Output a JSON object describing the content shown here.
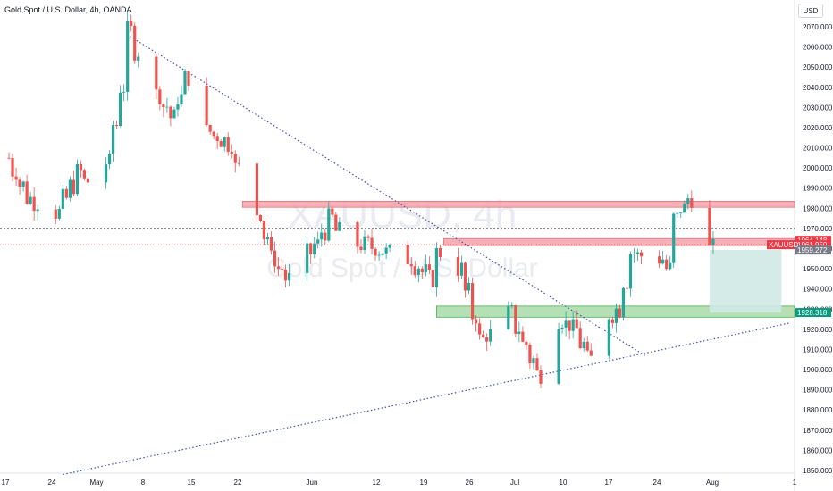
{
  "header": {
    "title": "Gold Spot / U.S. Dollar, 4h, OANDA",
    "currency": "USD"
  },
  "watermark": {
    "symbol": "XAUUSD, 4h",
    "subtitle": "Gold Spot / U.S. Dollar"
  },
  "colors": {
    "up": "#26a69a",
    "down": "#ef5350",
    "resistance_zone": "#f4a1a9",
    "support_zone": "#a8dba8",
    "target_box": "#cfe9e6",
    "trendline": "#3f51b5",
    "badge_red": "#f23645",
    "badge_green": "#089981",
    "badge_grey": "#787b86"
  },
  "chart_data": {
    "type": "candlestick",
    "symbol": "XAUUSD",
    "timeframe": "4h",
    "source": "OANDA",
    "x_ticks": [
      "17",
      "24",
      "May",
      "8",
      "15",
      "22",
      "Jun",
      "12",
      "19",
      "26",
      "Jul",
      "10",
      "17",
      "24",
      "Aug",
      "1"
    ],
    "y_ticks": [
      1850,
      1860,
      1870,
      1880,
      1890,
      1900,
      1910,
      1920,
      1930,
      1940,
      1950,
      1960,
      1970,
      1980,
      1990,
      2000,
      2010,
      2020,
      2030,
      2040,
      2050,
      2060,
      2070
    ],
    "ylim": [
      1848,
      2072
    ],
    "price_path": [
      {
        "date": "2023-04-17",
        "price": 2005
      },
      {
        "date": "2023-04-20",
        "price": 1985
      },
      {
        "date": "2023-04-24",
        "price": 1978
      },
      {
        "date": "2023-04-27",
        "price": 1998
      },
      {
        "date": "2023-04-30",
        "price": 1984
      },
      {
        "date": "2023-05-03",
        "price": 2040
      },
      {
        "date": "2023-05-04",
        "price": 2068
      },
      {
        "date": "2023-05-06",
        "price": 2048
      },
      {
        "date": "2023-05-10",
        "price": 2025
      },
      {
        "date": "2023-05-12",
        "price": 2045
      },
      {
        "date": "2023-05-15",
        "price": 2018
      },
      {
        "date": "2023-05-18",
        "price": 2012
      },
      {
        "date": "2023-05-20",
        "price": 1988
      },
      {
        "date": "2023-05-22",
        "price": 1978
      },
      {
        "date": "2023-05-24",
        "price": 1955
      },
      {
        "date": "2023-05-26",
        "price": 1945
      },
      {
        "date": "2023-05-30",
        "price": 1962
      },
      {
        "date": "2023-06-01",
        "price": 1975
      },
      {
        "date": "2023-06-03",
        "price": 1962
      },
      {
        "date": "2023-06-06",
        "price": 1962
      },
      {
        "date": "2023-06-09",
        "price": 1958
      },
      {
        "date": "2023-06-12",
        "price": 1955
      },
      {
        "date": "2023-06-15",
        "price": 1945
      },
      {
        "date": "2023-06-16",
        "price": 1958
      },
      {
        "date": "2023-06-19",
        "price": 1950
      },
      {
        "date": "2023-06-22",
        "price": 1915
      },
      {
        "date": "2023-06-24",
        "price": 1920
      },
      {
        "date": "2023-06-26",
        "price": 1928
      },
      {
        "date": "2023-06-29",
        "price": 1905
      },
      {
        "date": "2023-06-30",
        "price": 1898
      },
      {
        "date": "2023-07-03",
        "price": 1925
      },
      {
        "date": "2023-07-05",
        "price": 1920
      },
      {
        "date": "2023-07-07",
        "price": 1905
      },
      {
        "date": "2023-07-09",
        "price": 1925
      },
      {
        "date": "2023-07-11",
        "price": 1930
      },
      {
        "date": "2023-07-13",
        "price": 1958
      },
      {
        "date": "2023-07-15",
        "price": 1955
      },
      {
        "date": "2023-07-17",
        "price": 1955
      },
      {
        "date": "2023-07-18",
        "price": 1950
      },
      {
        "date": "2023-07-19",
        "price": 1975
      },
      {
        "date": "2023-07-20",
        "price": 1980
      },
      {
        "date": "2023-07-21",
        "price": 1985
      },
      {
        "date": "2023-07-22",
        "price": 1965
      },
      {
        "date": "2023-07-24",
        "price": 1960
      }
    ],
    "zones": [
      {
        "name": "resistance-zone-upper",
        "start": "2023-05-20",
        "end": "2023-08-03",
        "low": 1980.5,
        "high": 1983.5
      },
      {
        "name": "resistance-zone-lower",
        "start": "2023-06-17",
        "end": "2023-08-03",
        "low": 1961.5,
        "high": 1965
      },
      {
        "name": "support-zone",
        "start": "2023-06-16",
        "end": "2023-08-03",
        "low": 1926,
        "high": 1931.5
      }
    ],
    "target_box": {
      "start": "2023-07-24",
      "end": "2023-08-03",
      "low": 1928.3,
      "high": 1959.3
    },
    "trendlines": [
      {
        "name": "descending-trendline",
        "start": {
          "date": "2023-05-04",
          "price": 2066
        },
        "end": {
          "date": "2023-07-15",
          "price": 1907
        }
      },
      {
        "name": "ascending-trendline",
        "start": {
          "date": "2023-04-25",
          "price": 1848
        },
        "end": {
          "date": "2023-08-04",
          "price": 1923
        }
      }
    ],
    "hlines": [
      {
        "name": "dotted-level-line",
        "price": 1970
      },
      {
        "name": "current-price-line",
        "price": 1961.95
      }
    ],
    "price_labels": {
      "symbol": "XAUUSD",
      "high_label": "1964.148",
      "current_label": "1961.950",
      "mid_label": "1959.272",
      "support_label": "1928.318"
    }
  }
}
